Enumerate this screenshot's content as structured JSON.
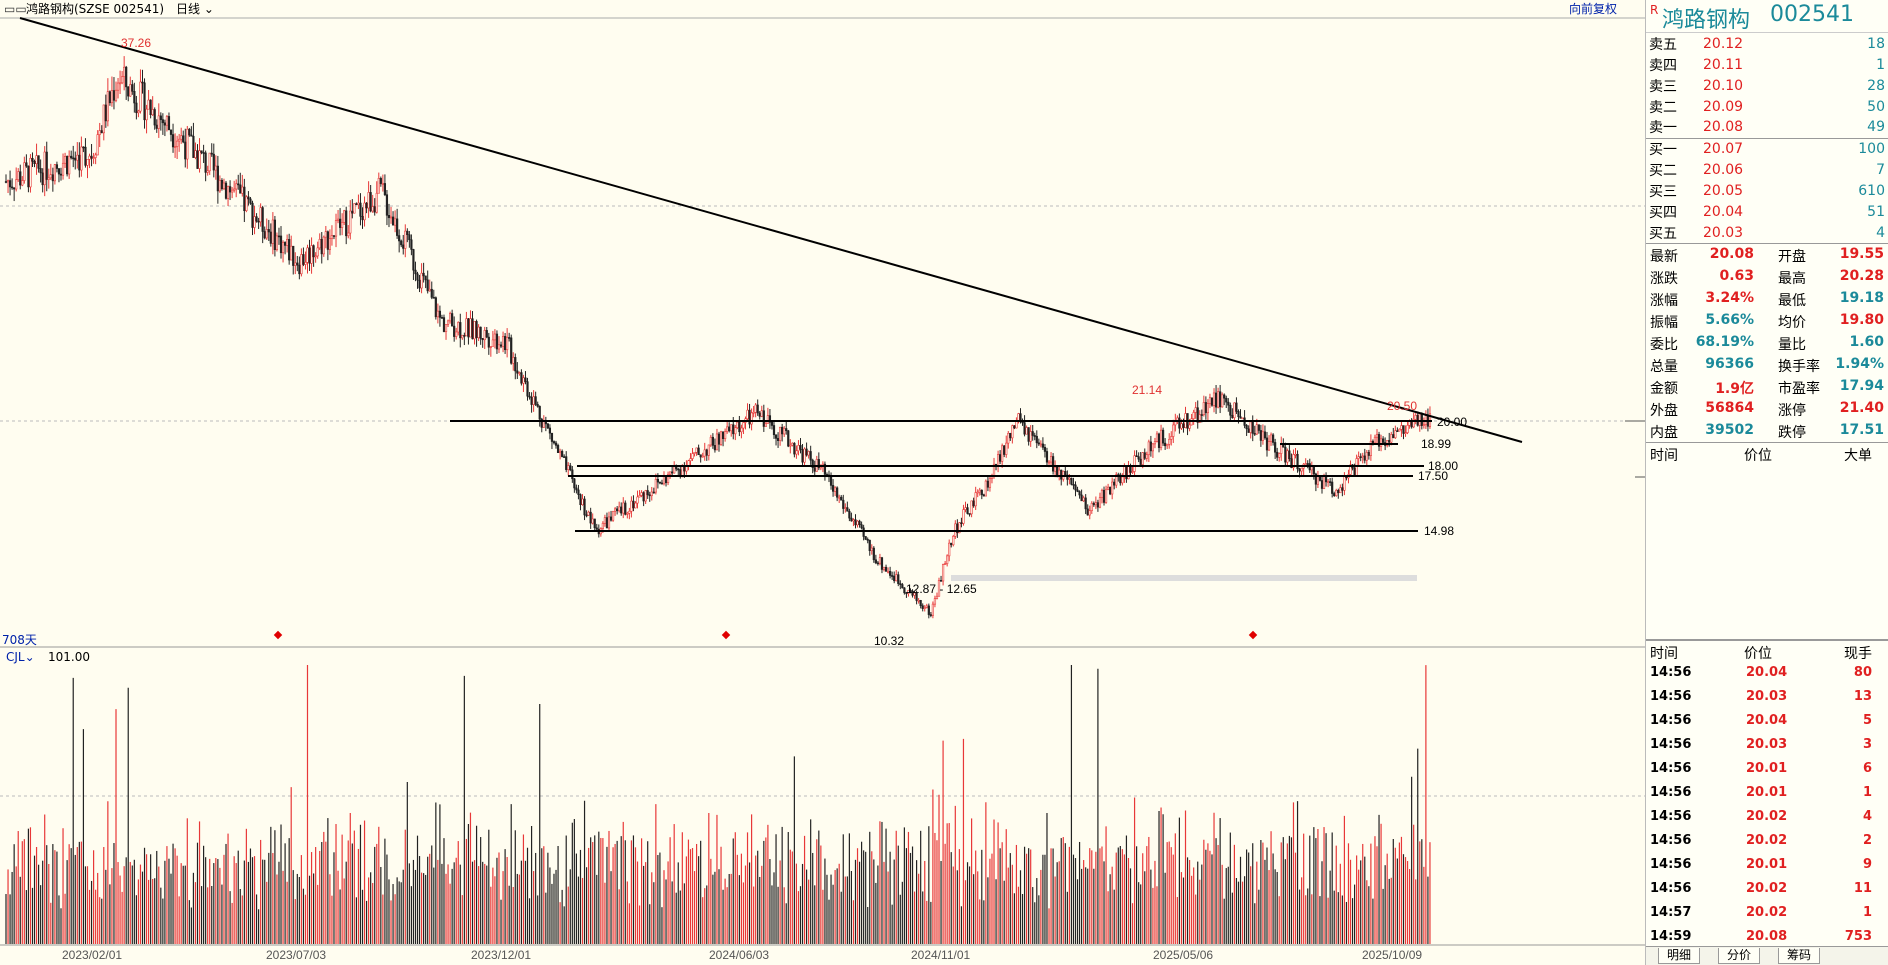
{
  "topbar": {
    "icon": "▭▭",
    "title": "鸿路钢构(SZSE 002541)",
    "period": "日线",
    "restore": "向前复权"
  },
  "kline": {
    "days_label": "708天",
    "high_mark": "37.26",
    "low_mark": "10.32",
    "peak_mark_1": "21.14",
    "peak_mark_2": "20.50",
    "range_label": "12.87 - 12.65",
    "levels": [
      {
        "label": "20.00",
        "value": 20.0
      },
      {
        "label": "18.99",
        "value": 18.99
      },
      {
        "label": "18.00",
        "value": 18.0
      },
      {
        "label": "17.50",
        "value": 17.5
      },
      {
        "label": "14.98",
        "value": 14.98
      }
    ],
    "dates": [
      "2023/02/01",
      "2023/07/03",
      "2023/12/01",
      "2024/06/03",
      "2024/11/01",
      "2025/05/06",
      "2025/10/09"
    ]
  },
  "volume": {
    "label": "CJL",
    "value": "101.00"
  },
  "side": {
    "badge": "R",
    "name": "鸿路钢构",
    "code": "002541",
    "asks": [
      {
        "label": "卖五",
        "price": "20.12",
        "vol": "18"
      },
      {
        "label": "卖四",
        "price": "20.11",
        "vol": "1"
      },
      {
        "label": "卖三",
        "price": "20.10",
        "vol": "28"
      },
      {
        "label": "卖二",
        "price": "20.09",
        "vol": "50"
      },
      {
        "label": "卖一",
        "price": "20.08",
        "vol": "49"
      }
    ],
    "bids": [
      {
        "label": "买一",
        "price": "20.07",
        "vol": "100"
      },
      {
        "label": "买二",
        "price": "20.06",
        "vol": "7"
      },
      {
        "label": "买三",
        "price": "20.05",
        "vol": "610"
      },
      {
        "label": "买四",
        "price": "20.04",
        "vol": "51"
      },
      {
        "label": "买五",
        "price": "20.03",
        "vol": "4"
      }
    ],
    "stats": [
      {
        "l1": "最新",
        "v1": "20.08",
        "c1": "red",
        "l2": "开盘",
        "v2": "19.55",
        "c2": "red"
      },
      {
        "l1": "涨跌",
        "v1": "0.63",
        "c1": "red",
        "l2": "最高",
        "v2": "20.28",
        "c2": "red"
      },
      {
        "l1": "涨幅",
        "v1": "3.24%",
        "c1": "red",
        "l2": "最低",
        "v2": "19.18",
        "c2": "teal"
      },
      {
        "l1": "振幅",
        "v1": "5.66%",
        "c1": "teal",
        "l2": "均价",
        "v2": "19.80",
        "c2": "red"
      },
      {
        "l1": "委比",
        "v1": "68.19%",
        "c1": "teal",
        "l2": "量比",
        "v2": "1.60",
        "c2": "teal"
      },
      {
        "l1": "总量",
        "v1": "96366",
        "c1": "teal",
        "l2": "换手率",
        "v2": "1.94%",
        "c2": "teal"
      },
      {
        "l1": "金额",
        "v1": "1.9亿",
        "c1": "red",
        "l2": "市盈率",
        "v2": "17.94",
        "c2": "teal"
      },
      {
        "l1": "外盘",
        "v1": "56864",
        "c1": "red",
        "l2": "涨停",
        "v2": "21.40",
        "c2": "red"
      },
      {
        "l1": "内盘",
        "v1": "39502",
        "c1": "teal",
        "l2": "跌停",
        "v2": "17.51",
        "c2": "teal"
      }
    ],
    "big_head": {
      "time": "时间",
      "price": "价位",
      "vol": "大单"
    },
    "tick_head": {
      "time": "时间",
      "price": "价位",
      "vol": "现手"
    },
    "ticks": [
      {
        "time": "14:56",
        "price": "20.04",
        "vol": "80"
      },
      {
        "time": "14:56",
        "price": "20.03",
        "vol": "13"
      },
      {
        "time": "14:56",
        "price": "20.04",
        "vol": "5"
      },
      {
        "time": "14:56",
        "price": "20.03",
        "vol": "3"
      },
      {
        "time": "14:56",
        "price": "20.01",
        "vol": "6"
      },
      {
        "time": "14:56",
        "price": "20.01",
        "vol": "1"
      },
      {
        "time": "14:56",
        "price": "20.02",
        "vol": "4"
      },
      {
        "time": "14:56",
        "price": "20.02",
        "vol": "2"
      },
      {
        "time": "14:56",
        "price": "20.01",
        "vol": "9"
      },
      {
        "time": "14:56",
        "price": "20.02",
        "vol": "11"
      },
      {
        "time": "14:57",
        "price": "20.02",
        "vol": "1"
      },
      {
        "time": "14:59",
        "price": "20.08",
        "vol": "753"
      }
    ],
    "tabs": [
      "明细",
      "分价",
      "筹码"
    ]
  },
  "chart_data": {
    "type": "candlestick",
    "title": "鸿路钢构(SZSE 002541)",
    "period": "日线",
    "x_ticks": [
      "2023/02/01",
      "2023/07/03",
      "2023/12/01",
      "2024/06/03",
      "2024/11/01",
      "2025/05/06",
      "2025/10/09"
    ],
    "ylim": [
      9,
      40
    ],
    "approx_close_path": [
      {
        "date": "2022/11/30",
        "close": 32.0
      },
      {
        "date": "2023/02/01",
        "close": 33.5
      },
      {
        "date": "2023/02/20",
        "close": 37.26
      },
      {
        "date": "2023/04/10",
        "close": 34.0
      },
      {
        "date": "2023/07/03",
        "close": 28.0
      },
      {
        "date": "2023/09/01",
        "close": 31.5
      },
      {
        "date": "2023/10/15",
        "close": 25.0
      },
      {
        "date": "2023/12/01",
        "close": 24.0
      },
      {
        "date": "2024/02/05",
        "close": 14.5
      },
      {
        "date": "2024/04/10",
        "close": 17.8
      },
      {
        "date": "2024/06/03",
        "close": 20.4
      },
      {
        "date": "2024/07/20",
        "close": 17.5
      },
      {
        "date": "2024/08/30",
        "close": 13.0
      },
      {
        "date": "2024/10/08",
        "close": 10.32
      },
      {
        "date": "2024/10/25",
        "close": 14.5
      },
      {
        "date": "2024/11/20",
        "close": 17.0
      },
      {
        "date": "2024/12/10",
        "close": 20.0
      },
      {
        "date": "2025/02/01",
        "close": 15.5
      },
      {
        "date": "2025/03/15",
        "close": 18.5
      },
      {
        "date": "2025/05/06",
        "close": 21.14
      },
      {
        "date": "2025/06/20",
        "close": 18.5
      },
      {
        "date": "2025/08/01",
        "close": 16.5
      },
      {
        "date": "2025/09/01",
        "close": 19.0
      },
      {
        "date": "2025/10/09",
        "close": 20.08
      }
    ],
    "annotations": [
      "37.26",
      "21.14",
      "20.50",
      "10.32"
    ],
    "support_resistance": [
      20.0,
      18.99,
      18.0,
      17.5,
      14.98
    ],
    "volume_label": "CJL",
    "volume_value": "101.00"
  }
}
